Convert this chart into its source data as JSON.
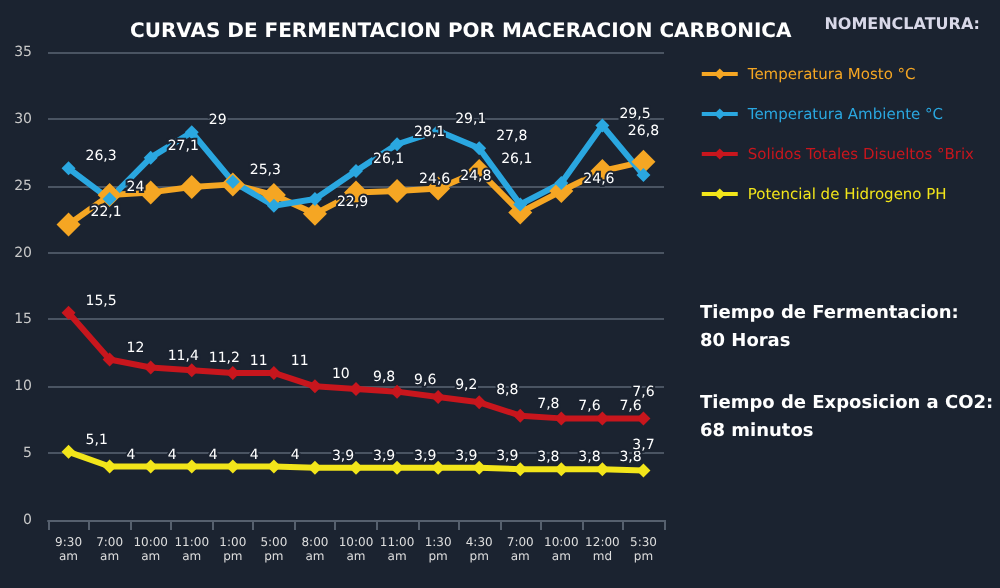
{
  "chart_data": {
    "type": "line",
    "title": "CURVAS DE FERMENTACION POR MACERACION CARBONICA",
    "legend_title": "NOMENCLATURA:",
    "categories": [
      "9:30am",
      "7:00am",
      "10:00am",
      "11:00am",
      "1:00pm",
      "5:00pm",
      "8:00am",
      "10:00am",
      "11:00am",
      "1:30pm",
      "4:30pm",
      "7:00am",
      "10:00am",
      "12:00md",
      "5:30pm"
    ],
    "series": [
      {
        "name": "Temperatura Mosto °C",
        "color": "#f5a623",
        "values": [
          22.1,
          24.3,
          24.5,
          24.9,
          25.1,
          24.3,
          22.9,
          24.5,
          24.6,
          24.8,
          26.1,
          23,
          24.6,
          26.1,
          26.8
        ],
        "value_labels": [
          "22,1",
          null,
          null,
          null,
          null,
          null,
          "22,9",
          null,
          "24,6",
          "24,8",
          "26,1",
          null,
          "24,6",
          null,
          "26,8"
        ]
      },
      {
        "name": "Temperatura Ambiente °C",
        "color": "#2aa7e0",
        "values": [
          26.3,
          24,
          27.1,
          29,
          25.3,
          23.5,
          24,
          26.1,
          28.1,
          29.1,
          27.8,
          23.6,
          25.2,
          29.5,
          25.8
        ],
        "value_labels": [
          "26,3",
          "24",
          "27,1",
          "29",
          "25,3",
          null,
          null,
          "26,1",
          "28,1",
          "29,1",
          "27,8",
          null,
          null,
          "29,5",
          null
        ]
      },
      {
        "name": "Solidos Totales Disueltos °Brix",
        "color": "#c8161d",
        "values": [
          15.5,
          12,
          11.4,
          11.2,
          11,
          11,
          10,
          9.8,
          9.6,
          9.2,
          8.8,
          7.8,
          7.6,
          7.6,
          7.6
        ],
        "value_labels": [
          "15,5",
          "12",
          "11,4",
          "11,2",
          "11",
          "11",
          "10",
          "9,8",
          "9,6",
          "9,2",
          "8,8",
          "7,8",
          "7,6",
          "7,6",
          "7,6"
        ]
      },
      {
        "name": "Potencial de Hidrogeno PH",
        "color": "#f2e51a",
        "values": [
          5.1,
          4,
          4,
          4,
          4,
          4,
          3.9,
          3.9,
          3.9,
          3.9,
          3.9,
          3.8,
          3.8,
          3.8,
          3.7
        ],
        "value_labels": [
          "5,1",
          "4",
          "4",
          "4",
          "4",
          "4",
          "3,9",
          "3,9",
          "3,9",
          "3,9",
          "3,9",
          "3,8",
          "3,8",
          "3,8",
          "3,7"
        ]
      }
    ],
    "ylim": [
      0,
      35
    ],
    "yticks": [
      0,
      5,
      10,
      15,
      20,
      25,
      30,
      35
    ],
    "grid": "y",
    "legend": "right",
    "marker": "diamond",
    "line_style": "solid",
    "annotations": [
      "Tiempo de Fermentacion: 80 Horas",
      "Tiempo de Exposicion a CO2: 68 minutos"
    ]
  }
}
